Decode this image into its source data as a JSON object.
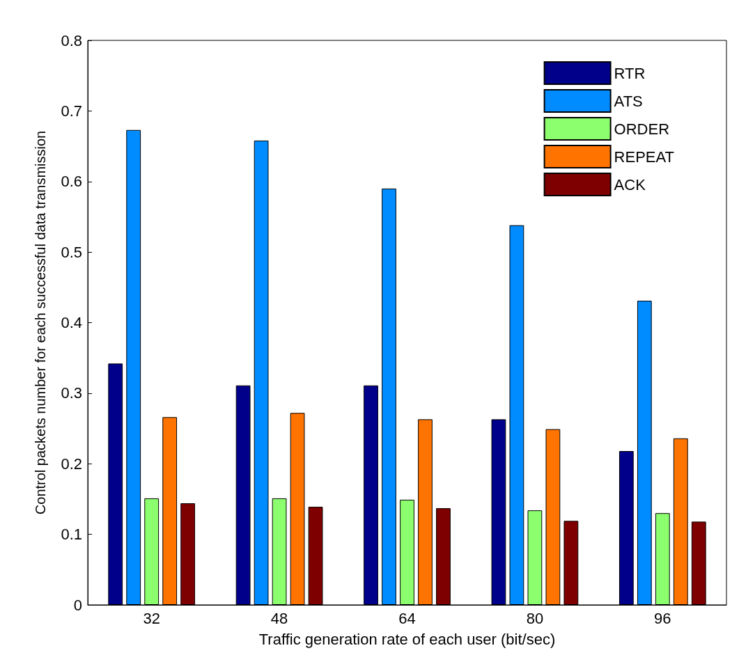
{
  "chart_data": {
    "type": "bar",
    "xlabel": "Traffic generation rate of each user (bit/sec)",
    "ylabel": "Control packets number for each successful data transmission",
    "categories": [
      "32",
      "48",
      "64",
      "80",
      "96"
    ],
    "series": [
      {
        "name": "RTR",
        "color": "#00008b",
        "values": [
          0.342,
          0.311,
          0.311,
          0.263,
          0.218
        ]
      },
      {
        "name": "ATS",
        "color": "#008cff",
        "values": [
          0.673,
          0.658,
          0.59,
          0.538,
          0.431
        ]
      },
      {
        "name": "ORDER",
        "color": "#8cff6e",
        "values": [
          0.151,
          0.151,
          0.149,
          0.134,
          0.13
        ]
      },
      {
        "name": "REPEAT",
        "color": "#ff7300",
        "values": [
          0.266,
          0.272,
          0.263,
          0.249,
          0.236
        ]
      },
      {
        "name": "ACK",
        "color": "#7f0000",
        "values": [
          0.144,
          0.139,
          0.137,
          0.119,
          0.118
        ]
      }
    ],
    "ylim": [
      0,
      0.8
    ],
    "yticks": [
      0,
      0.1,
      0.2,
      0.3,
      0.4,
      0.5,
      0.6,
      0.7,
      0.8
    ],
    "grid": false,
    "legend": "top right"
  }
}
